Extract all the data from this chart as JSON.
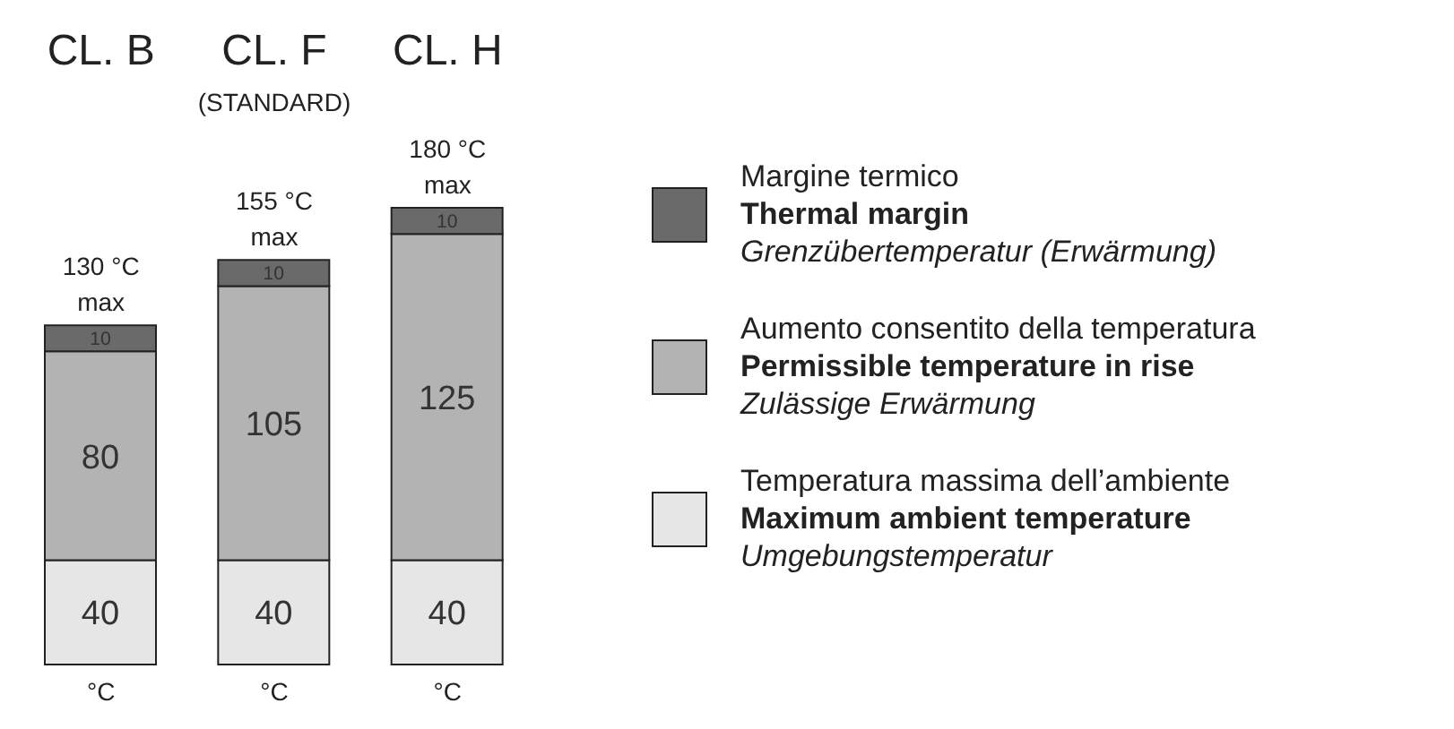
{
  "chart_data": {
    "type": "bar",
    "stacked": true,
    "categories": [
      "CL. B",
      "CL. F",
      "CL. H"
    ],
    "series": [
      {
        "name": "Temperatura massima dell’ambiente\nMaximum ambient temperature\nUmgebungstemperatur",
        "color": "#e6e6e6",
        "values": [
          40,
          40,
          40
        ]
      },
      {
        "name": "Aumento consentito della temperatura\nPermissible temperature in rise\nZulässige Erwärmung",
        "color": "#b3b3b3",
        "values": [
          80,
          105,
          125
        ]
      },
      {
        "name": "Margine termico\nThermal margin\nGrenzübertemperatur (Erwärmung)",
        "color": "#6a6a6a",
        "values": [
          10,
          10,
          10
        ]
      }
    ],
    "data_labels": true,
    "annotations": [
      "(STANDARD)",
      {
        "text": "130 °C\nmax",
        "x": "CL. B",
        "y": 130
      },
      {
        "text": "155 °C\nmax",
        "x": "CL. F",
        "y": 155
      },
      {
        "text": "180 °C\nmax",
        "x": "CL. H",
        "y": 175
      },
      {
        "text": "°C",
        "x": "CL. B",
        "y": 0
      },
      {
        "text": "°C",
        "x": "CL. F",
        "y": 0
      },
      {
        "text": "°C",
        "x": "CL. H",
        "y": 0
      }
    ],
    "legend": "right"
  }
}
